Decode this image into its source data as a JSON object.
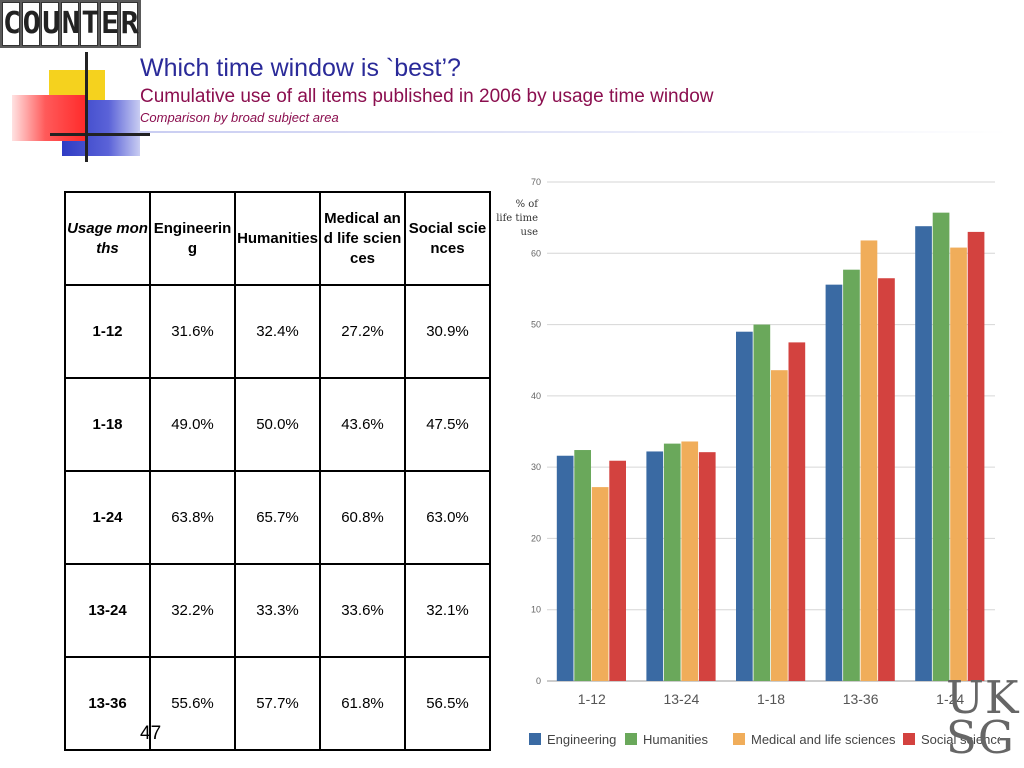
{
  "header": {
    "logo_text": "COUNTER",
    "title": "Which time window is `best’?",
    "subtitle": "Cumulative use of all items published in 2006 by usage time window",
    "subsubtitle": "Comparison by broad subject area"
  },
  "table": {
    "headers": [
      "Usage months",
      "Engineering",
      "Humanities",
      "Medical and life sciences",
      "Social sciences"
    ],
    "rows": [
      {
        "label": "1-12",
        "values": [
          "31.6%",
          "32.4%",
          "27.2%",
          "30.9%"
        ]
      },
      {
        "label": "1-18",
        "values": [
          "49.0%",
          "50.0%",
          "43.6%",
          "47.5%"
        ]
      },
      {
        "label": "1-24",
        "values": [
          "63.8%",
          "65.7%",
          "60.8%",
          "63.0%"
        ]
      },
      {
        "label": "13-24",
        "values": [
          "32.2%",
          "33.3%",
          "33.6%",
          "32.1%"
        ]
      },
      {
        "label": "13-36",
        "values": [
          "55.6%",
          "57.7%",
          "61.8%",
          "56.5%"
        ]
      }
    ]
  },
  "footer": {
    "page_number": "47",
    "watermark": "UK SG"
  },
  "colors": {
    "engineering": "#3a6aa3",
    "humanities": "#6aa85b",
    "medical": "#f0ad5a",
    "social": "#d3423f"
  },
  "chart_data": {
    "type": "bar",
    "ylabel": "% of life time use",
    "categories": [
      "1-12",
      "13-24",
      "1-18",
      "13-36",
      "1-24"
    ],
    "ylim": [
      0,
      70
    ],
    "yticks": [
      0,
      10,
      20,
      30,
      40,
      50,
      60,
      70
    ],
    "grid": true,
    "legend_position": "bottom",
    "series": [
      {
        "name": "Engineering",
        "color": "#3a6aa3",
        "values": [
          31.6,
          32.2,
          49.0,
          55.6,
          63.8
        ]
      },
      {
        "name": "Humanities",
        "color": "#6aa85b",
        "values": [
          32.4,
          33.3,
          50.0,
          57.7,
          65.7
        ]
      },
      {
        "name": "Medical and life sciences",
        "color": "#f0ad5a",
        "values": [
          27.2,
          33.6,
          43.6,
          61.8,
          60.8
        ]
      },
      {
        "name": "Social sciences",
        "color": "#d3423f",
        "values": [
          30.9,
          32.1,
          47.5,
          56.5,
          63.0
        ]
      }
    ]
  }
}
